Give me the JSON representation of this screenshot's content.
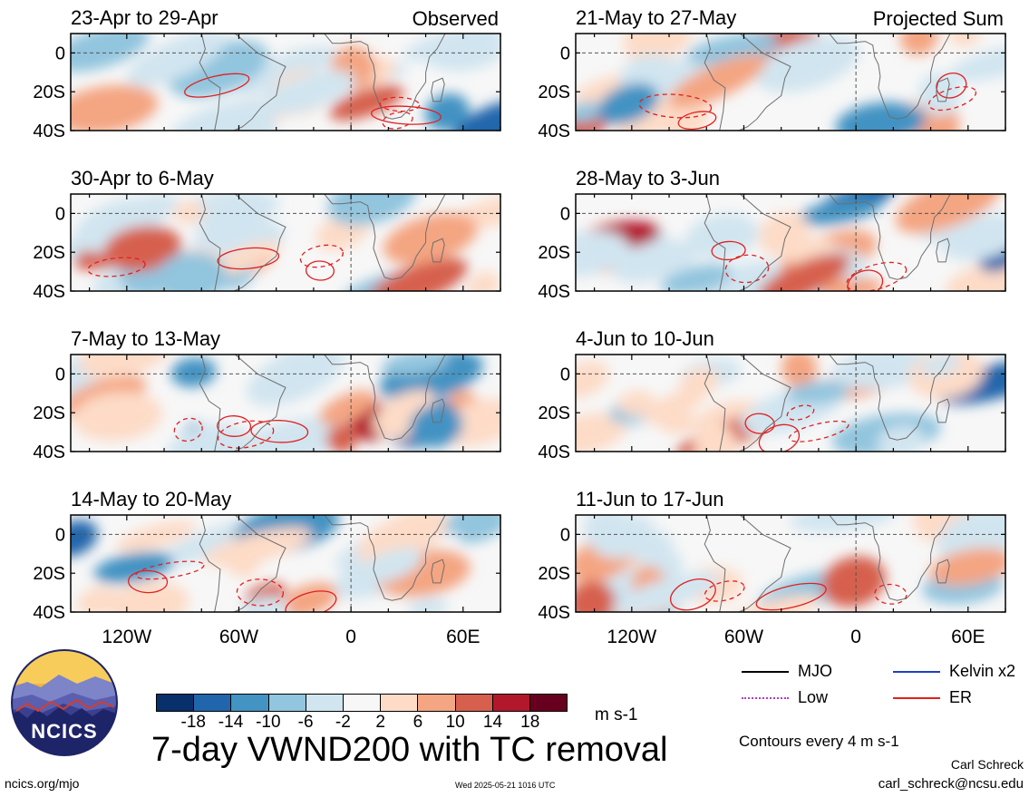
{
  "chart_data": {
    "type": "heatmap",
    "variable": "7-day VWND200 with TC removal",
    "units": "m s-1",
    "colorbar": {
      "ticks": [
        "-18",
        "-14",
        "-10",
        "-6",
        "-2",
        "2",
        "6",
        "10",
        "14",
        "18"
      ],
      "colors": [
        "#08306b",
        "#2166ac",
        "#4393c3",
        "#92c5de",
        "#d1e5f0",
        "#f7f7f7",
        "#fddbc7",
        "#f4a582",
        "#d6604d",
        "#b2182b",
        "#67001f"
      ]
    },
    "longitude_ticks": [
      "120W",
      "60W",
      "0",
      "60E"
    ],
    "latitude_ticks": [
      "0",
      "20S",
      "40S"
    ],
    "lat_range": [
      -40,
      10
    ],
    "lon_range": [
      -150,
      80
    ],
    "columns": [
      {
        "header": "Observed",
        "panels": [
          "23-Apr to 29-Apr",
          "30-Apr to 6-May",
          "7-May to 13-May",
          "14-May to 20-May"
        ]
      },
      {
        "header": "Projected Sum",
        "panels": [
          "21-May to 27-May",
          "28-May to 3-Jun",
          "4-Jun to 10-Jun",
          "11-Jun to 17-Jun"
        ]
      }
    ],
    "legend": [
      {
        "label": "MJO",
        "color": "#000000",
        "style": "solid"
      },
      {
        "label": "Kelvin x2",
        "color": "#1f3fbf",
        "style": "solid"
      },
      {
        "label": "Low",
        "color": "#b03cc8",
        "style": "dotted"
      },
      {
        "label": "ER",
        "color": "#e02020",
        "style": "solid"
      }
    ],
    "contour_interval_note": "Contours every 4 m s-1"
  },
  "footer": {
    "title": "7-day VWND200 with TC removal",
    "author": "Carl Schreck",
    "email": "carl_schreck@ncsu.edu",
    "site": "ncics.org/mjo",
    "timestamp": "Wed 2025-05-21 1016 UTC",
    "logo_text": "NCICS"
  }
}
